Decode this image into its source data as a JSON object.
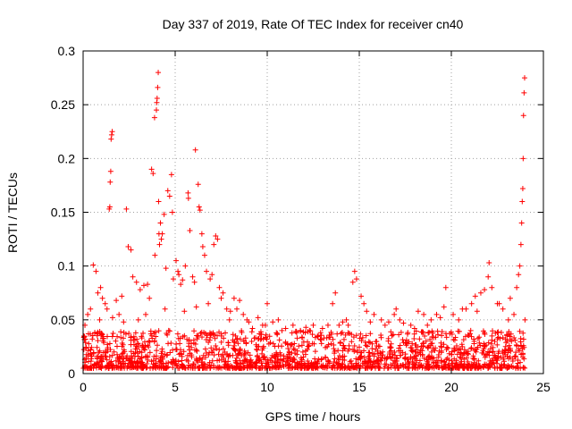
{
  "chart_data": {
    "type": "scatter",
    "title": "Day 337 of 2019, Rate Of TEC Index for receiver cn40",
    "xlabel": "GPS time / hours",
    "ylabel": "ROTI / TECUs",
    "xlim": [
      0,
      25
    ],
    "ylim": [
      0,
      0.3
    ],
    "x_ticks": [
      0,
      5,
      10,
      15,
      20,
      25
    ],
    "x_tick_labels": [
      "0",
      "5",
      "10",
      "15",
      "20",
      "25"
    ],
    "y_ticks": [
      0,
      0.05,
      0.1,
      0.15,
      0.2,
      0.25,
      0.3
    ],
    "y_tick_labels": [
      "0",
      "0.05",
      "0.1",
      "0.15",
      "0.2",
      "0.25",
      "0.3"
    ],
    "grid": true,
    "marker": "plus",
    "marker_color": "#ff0000",
    "series": [
      {
        "x": [
          1.42,
          1.45,
          1.47,
          1.5,
          1.52,
          1.55,
          1.58,
          3.72,
          3.8,
          3.88,
          3.98,
          4.0,
          4.02,
          4.05,
          4.08,
          4.1,
          4.12,
          4.15,
          4.2,
          4.25,
          4.3,
          4.4,
          4.6,
          4.7,
          4.8,
          4.85,
          5.05,
          5.15,
          5.3,
          5.55,
          5.7,
          5.72,
          5.8,
          6.1,
          6.25,
          6.3,
          6.35,
          6.45,
          6.5,
          6.6,
          7.1,
          7.2,
          7.3,
          2.35,
          2.45,
          2.6,
          2.7,
          3.3,
          3.5,
          3.6,
          0.25,
          0.4,
          0.55,
          0.7,
          0.8,
          0.95,
          1.05,
          1.2,
          1.3,
          1.8,
          1.95,
          2.1,
          2.9,
          3.1,
          3.9,
          4.5,
          4.9,
          5.2,
          5.4,
          5.95,
          6.05,
          6.7,
          6.9,
          7.0,
          7.4,
          7.6,
          7.8,
          7.95,
          8.2,
          8.5,
          8.7,
          8.9,
          9.2,
          9.5,
          9.75,
          10.0,
          10.3,
          10.6,
          11.0,
          11.4,
          11.8,
          12.1,
          12.5,
          12.9,
          13.3,
          13.55,
          13.7,
          14.1,
          14.4,
          14.65,
          14.75,
          14.85,
          15.1,
          15.25,
          15.4,
          15.8,
          16.2,
          16.6,
          16.9,
          17.0,
          17.4,
          17.8,
          18.2,
          18.5,
          18.9,
          19.2,
          19.6,
          19.7,
          20.1,
          20.4,
          20.8,
          21.1,
          21.3,
          21.6,
          21.8,
          22.0,
          22.05,
          22.2,
          22.5,
          22.8,
          23.1,
          23.4,
          23.55,
          23.65,
          23.72,
          23.78,
          23.82,
          23.85,
          23.88,
          23.9,
          23.92,
          23.95,
          23.98,
          0.1,
          0.9,
          1.6,
          2.2,
          3.0,
          3.4,
          4.45,
          5.5,
          6.15,
          6.8,
          7.5,
          8.0,
          8.35,
          9.0,
          9.9,
          10.8,
          11.6,
          12.3,
          13.0,
          13.9,
          14.3,
          15.6,
          16.4,
          17.2,
          18.0,
          18.7,
          19.4,
          20.6,
          21.4,
          22.6,
          23.2,
          24.0
        ],
        "y": [
          0.153,
          0.155,
          0.178,
          0.188,
          0.218,
          0.222,
          0.225,
          0.19,
          0.186,
          0.238,
          0.245,
          0.252,
          0.256,
          0.266,
          0.28,
          0.16,
          0.13,
          0.12,
          0.14,
          0.125,
          0.13,
          0.148,
          0.17,
          0.165,
          0.185,
          0.15,
          0.105,
          0.095,
          0.083,
          0.1,
          0.168,
          0.163,
          0.133,
          0.208,
          0.176,
          0.155,
          0.152,
          0.13,
          0.118,
          0.11,
          0.12,
          0.128,
          0.125,
          0.153,
          0.118,
          0.115,
          0.09,
          0.082,
          0.083,
          0.07,
          0.055,
          0.06,
          0.101,
          0.095,
          0.075,
          0.08,
          0.07,
          0.065,
          0.06,
          0.068,
          0.055,
          0.072,
          0.085,
          0.078,
          0.11,
          0.098,
          0.088,
          0.092,
          0.087,
          0.09,
          0.085,
          0.095,
          0.088,
          0.092,
          0.08,
          0.075,
          0.06,
          0.05,
          0.07,
          0.068,
          0.055,
          0.05,
          0.042,
          0.052,
          0.045,
          0.065,
          0.048,
          0.05,
          0.042,
          0.045,
          0.04,
          0.043,
          0.045,
          0.038,
          0.045,
          0.065,
          0.075,
          0.048,
          0.045,
          0.085,
          0.095,
          0.088,
          0.072,
          0.065,
          0.058,
          0.055,
          0.05,
          0.048,
          0.055,
          0.06,
          0.047,
          0.045,
          0.058,
          0.055,
          0.05,
          0.055,
          0.062,
          0.08,
          0.055,
          0.05,
          0.06,
          0.065,
          0.072,
          0.075,
          0.078,
          0.09,
          0.103,
          0.08,
          0.065,
          0.06,
          0.05,
          0.055,
          0.08,
          0.092,
          0.1,
          0.12,
          0.14,
          0.16,
          0.172,
          0.2,
          0.24,
          0.261,
          0.275,
          0.045,
          0.05,
          0.052,
          0.048,
          0.05,
          0.055,
          0.06,
          0.058,
          0.062,
          0.065,
          0.07,
          0.058,
          0.06,
          0.048,
          0.045,
          0.04,
          0.038,
          0.04,
          0.042,
          0.045,
          0.05,
          0.048,
          0.045,
          0.05,
          0.042,
          0.045,
          0.052,
          0.06,
          0.058,
          0.065,
          0.07,
          0.05
        ]
      }
    ]
  }
}
